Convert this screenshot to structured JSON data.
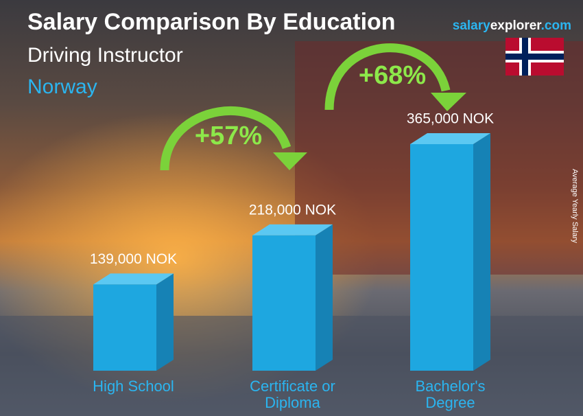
{
  "chart_data": {
    "type": "bar",
    "title": "Salary Comparison By Education",
    "subtitle": "Driving Instructor",
    "location": "Norway",
    "brand": [
      "salary",
      "explorer",
      ".com"
    ],
    "y_label": "Average Yearly Salary",
    "categories": [
      "High School",
      "Certificate or Diploma",
      "Bachelor's Degree"
    ],
    "values": [
      139000,
      218000,
      365000
    ],
    "value_labels": [
      "139,000 NOK",
      "218,000 NOK",
      "365,000 NOK"
    ],
    "annotations": [
      "+57%",
      "+68%"
    ],
    "color": "#1ea7e0"
  }
}
